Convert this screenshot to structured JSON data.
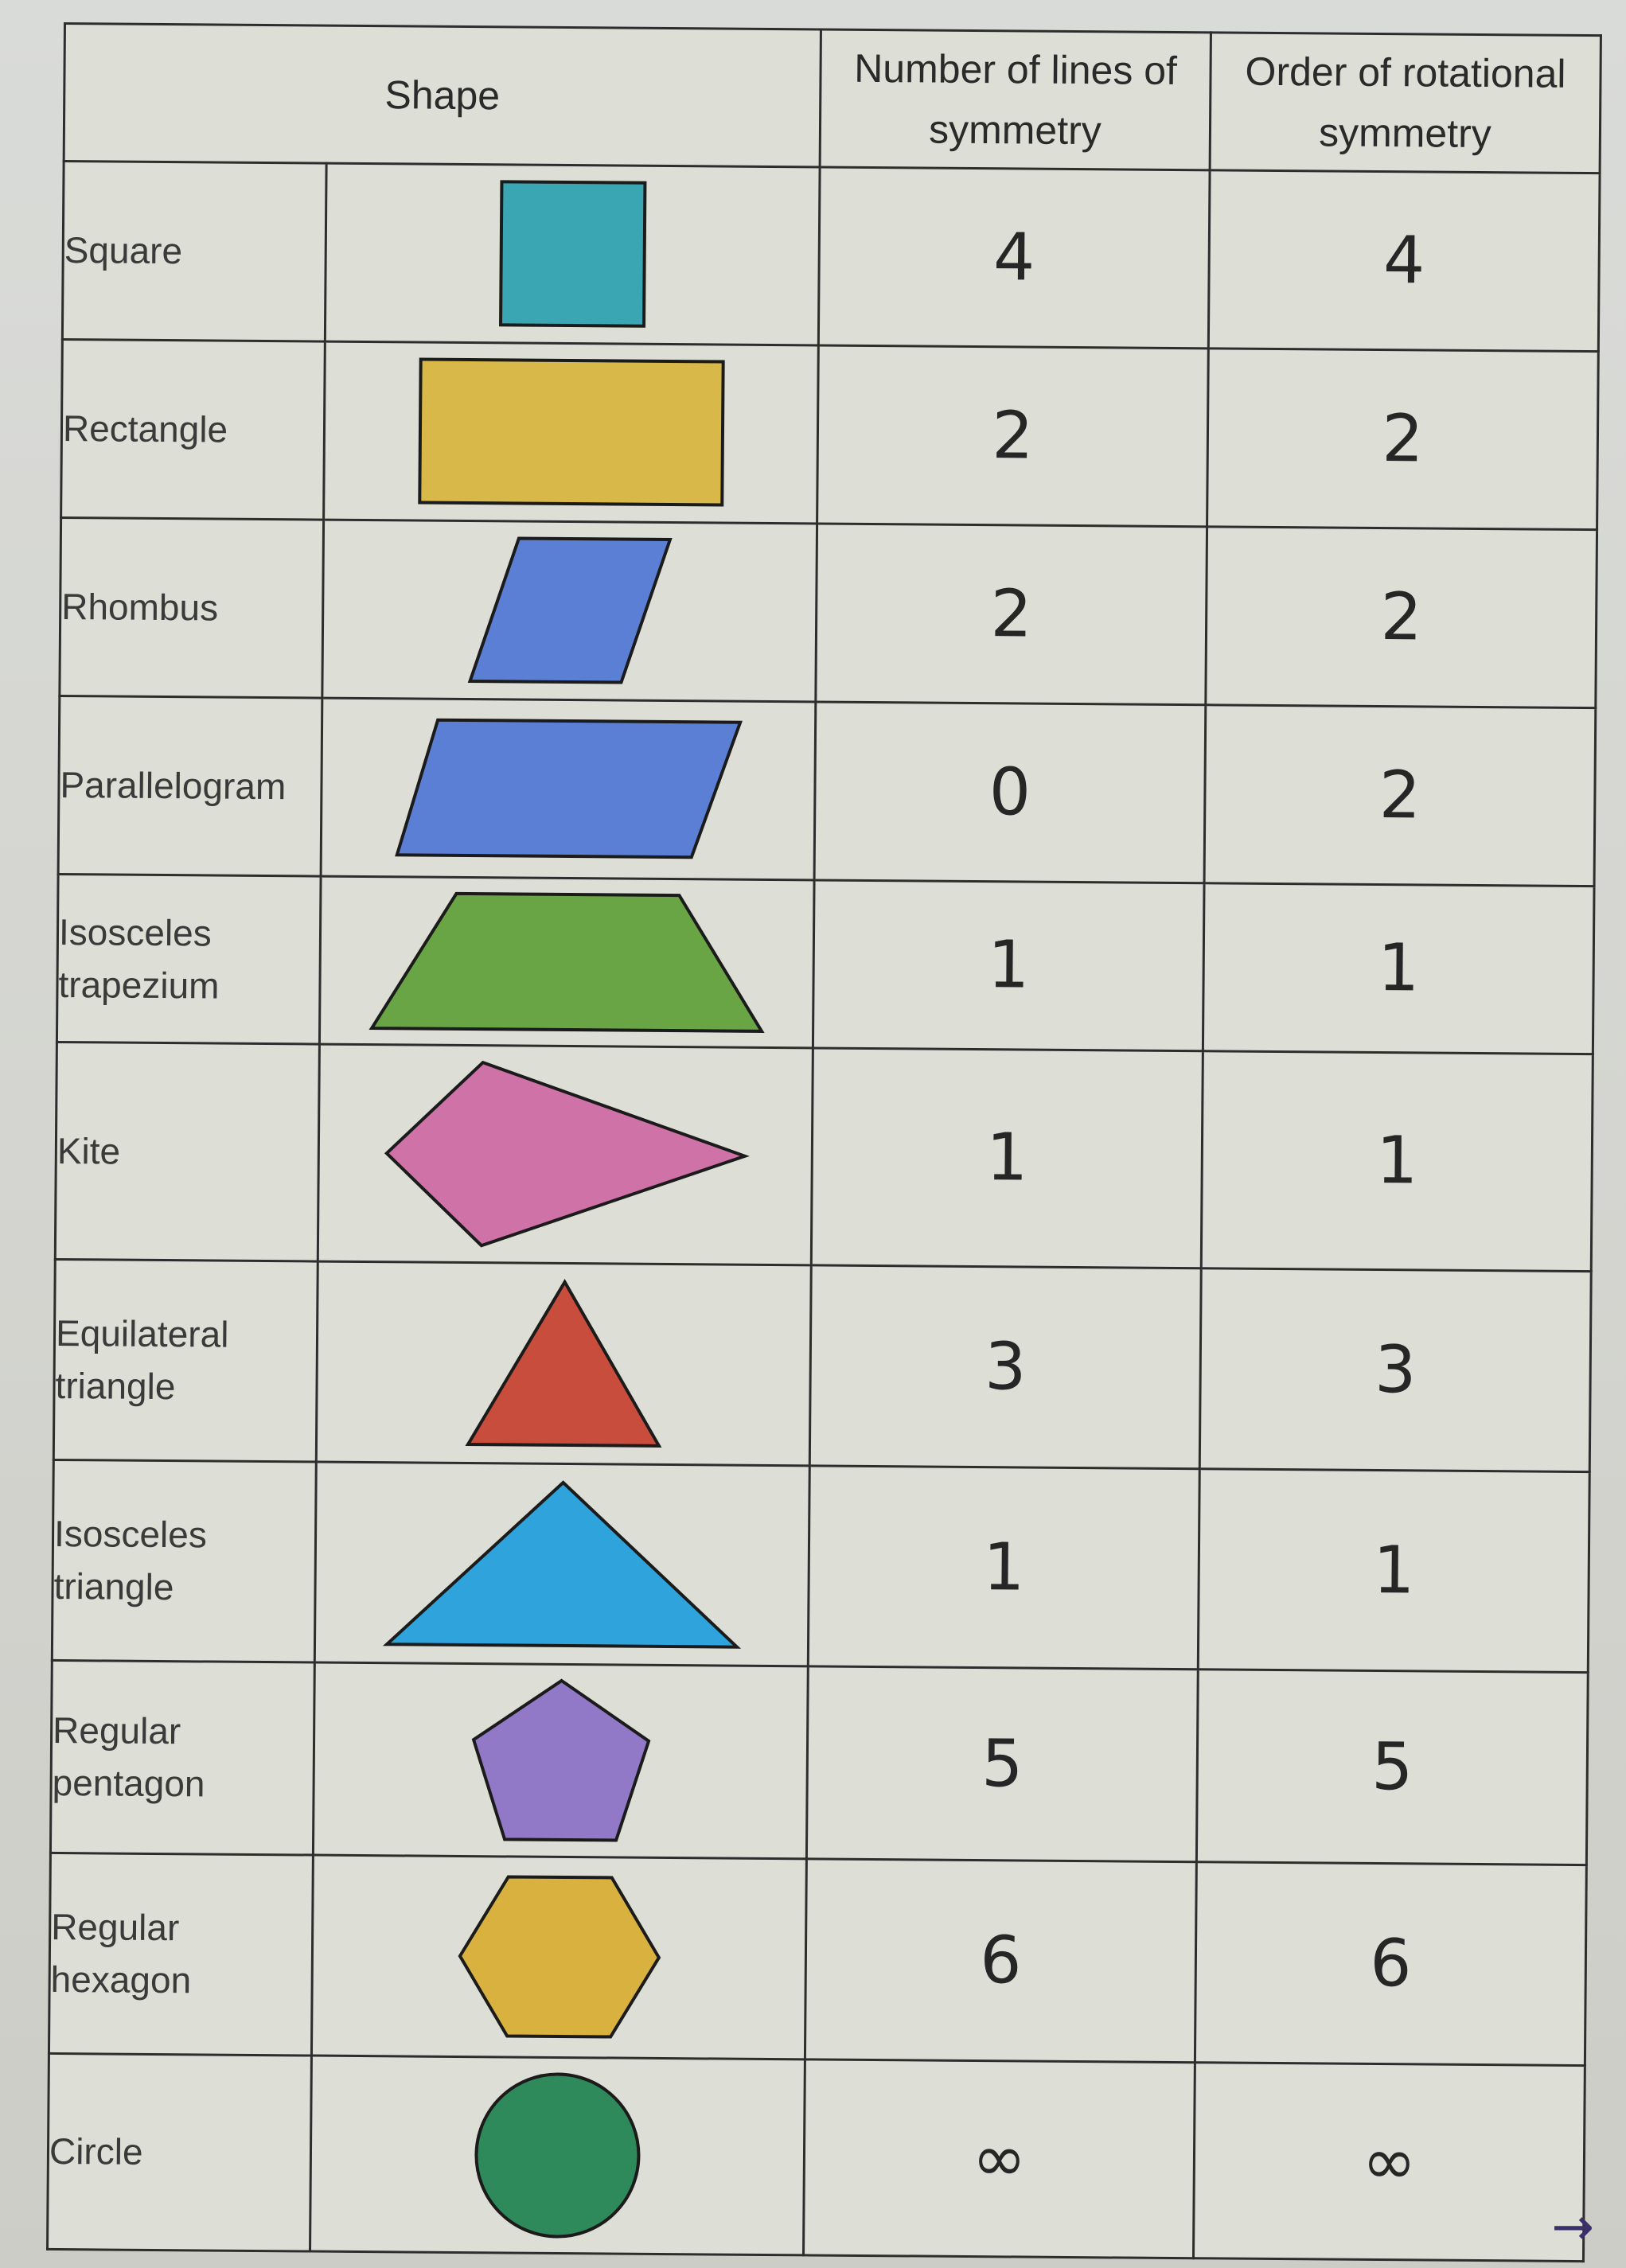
{
  "headers": {
    "shape": "Shape",
    "lines": [
      "Number of lines of",
      "symmetry"
    ],
    "rotational": [
      "Order of rotational",
      "symmetry"
    ]
  },
  "rows": [
    {
      "name": [
        "Square"
      ],
      "lines": "4",
      "rotational": "4",
      "icon": "square-icon",
      "color": "#3aa6b3"
    },
    {
      "name": [
        "Rectangle"
      ],
      "lines": "2",
      "rotational": "2",
      "icon": "rectangle-icon",
      "color": "#d9b84a"
    },
    {
      "name": [
        "Rhombus"
      ],
      "lines": "2",
      "rotational": "2",
      "icon": "rhombus-icon",
      "color": "#5b7fd4"
    },
    {
      "name": [
        "Parallelogram"
      ],
      "lines": "0",
      "rotational": "2",
      "icon": "parallelogram-icon",
      "color": "#5c7fd6"
    },
    {
      "name": [
        "Isosceles",
        "trapezium"
      ],
      "lines": "1",
      "rotational": "1",
      "icon": "trapezium-icon",
      "color": "#6aa545"
    },
    {
      "name": [
        "Kite"
      ],
      "lines": "1",
      "rotational": "1",
      "icon": "kite-icon",
      "color": "#cf72a8"
    },
    {
      "name": [
        "Equilateral",
        "triangle"
      ],
      "lines": "3",
      "rotational": "3",
      "icon": "equilateral-triangle-icon",
      "color": "#c84d3c"
    },
    {
      "name": [
        "Isosceles",
        "triangle"
      ],
      "lines": "1",
      "rotational": "1",
      "icon": "isosceles-triangle-icon",
      "color": "#2fa3dc"
    },
    {
      "name": [
        "Regular",
        "pentagon"
      ],
      "lines": "5",
      "rotational": "5",
      "icon": "pentagon-icon",
      "color": "#9279c8"
    },
    {
      "name": [
        "Regular",
        "hexagon"
      ],
      "lines": "6",
      "rotational": "6",
      "icon": "hexagon-icon",
      "color": "#d9b13e"
    },
    {
      "name": [
        "Circle"
      ],
      "lines": "∞",
      "rotational": "∞",
      "icon": "circle-icon",
      "color": "#2e8a5a"
    }
  ],
  "footer": {
    "arrow": "→"
  }
}
